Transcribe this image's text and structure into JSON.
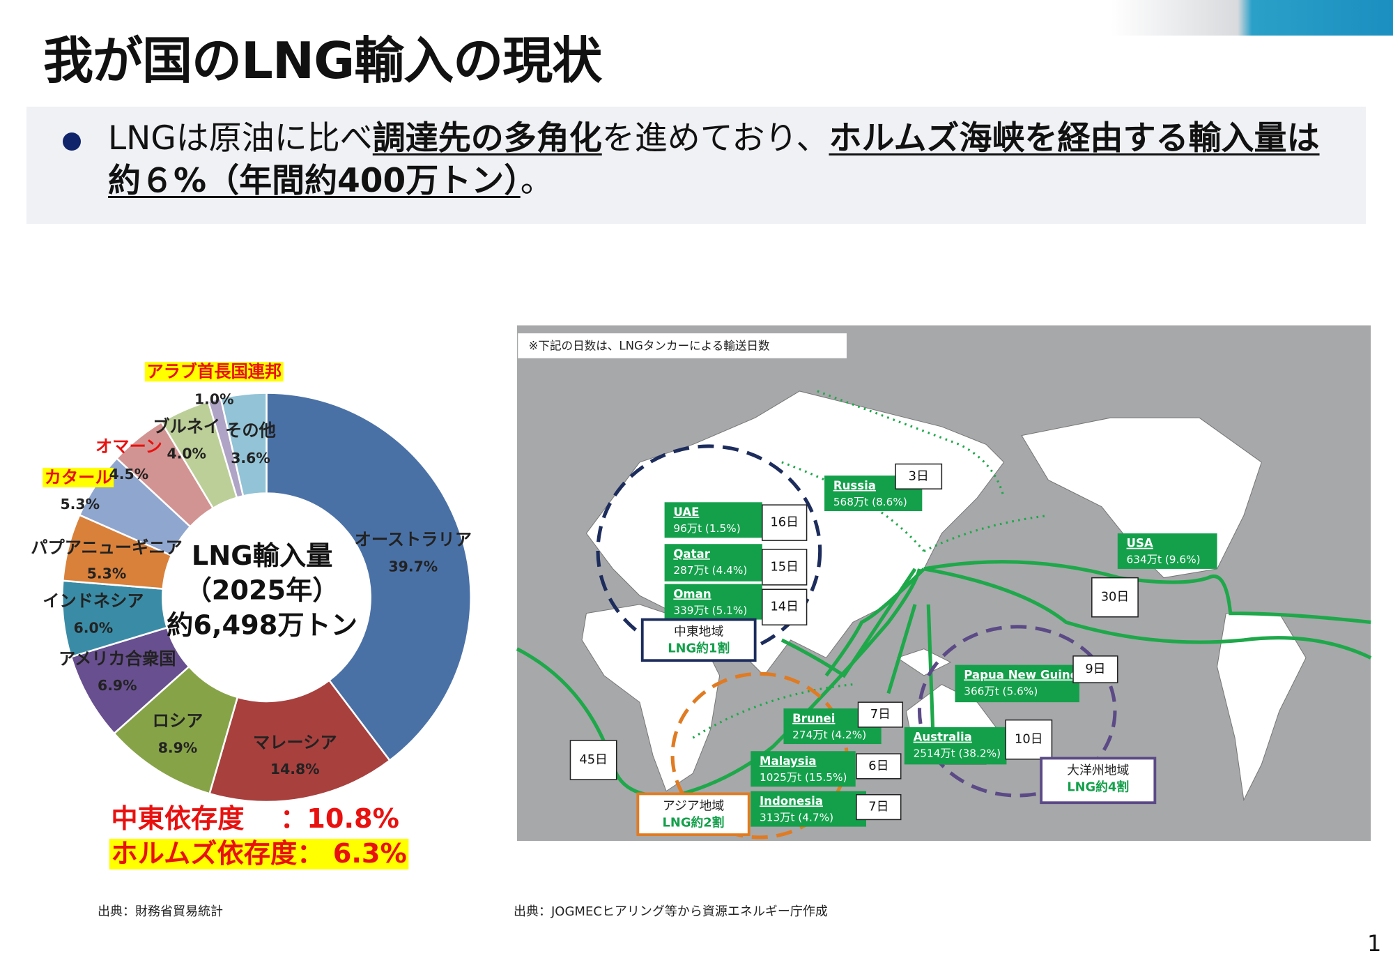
{
  "header": {
    "title": "我が国のLNG輸入の現状"
  },
  "summary": {
    "segments": [
      {
        "text": "LNGは原油に比べ",
        "emphasis": false
      },
      {
        "text": "調達先の多角化",
        "emphasis": true
      },
      {
        "text": "を進めており、",
        "emphasis": false
      },
      {
        "text": "ホルムズ海峡を経由する輸入量は約６%（年間約400万トン）",
        "emphasis": true
      },
      {
        "text": "。",
        "emphasis": false
      }
    ]
  },
  "chart_data": {
    "type": "donut",
    "categories": [
      "オーストラリア",
      "マレーシア",
      "ロシア",
      "アメリカ合衆国",
      "インドネシア",
      "パプアニューギニア",
      "カタール",
      "オマーン",
      "ブルネイ",
      "アラブ首長国連邦",
      "その他"
    ],
    "values": [
      39.7,
      14.8,
      8.9,
      6.9,
      6.0,
      5.3,
      5.3,
      4.5,
      4.0,
      1.0,
      3.6
    ],
    "value_labels": [
      "39.7%",
      "14.8%",
      "8.9%",
      "6.9%",
      "6.0%",
      "5.3%",
      "5.3%",
      "4.5%",
      "4.0%",
      "1.0%",
      "3.6%"
    ],
    "colors": [
      "#4a71a6",
      "#a8403e",
      "#87a348",
      "#684f8f",
      "#3a8ca6",
      "#d9813a",
      "#8fa6cf",
      "#d29493",
      "#bccf98",
      "#afa3c6",
      "#92c3d6"
    ],
    "label_colors": [
      "#222",
      "#222",
      "#222",
      "#222",
      "#222",
      "#222",
      "#e8110f",
      "#e8110f",
      "#222",
      "#e8110f",
      "#222"
    ],
    "label_backgrounds": [
      null,
      null,
      null,
      null,
      null,
      null,
      "#ffff00",
      null,
      null,
      "#ffff00",
      null
    ],
    "center_text": [
      "LNG輸入量",
      "（2025年）",
      "約6,498万トン"
    ],
    "annotations": [
      "中東依存度　 ：10.8%",
      "ホルムズ依存度： 6.3%"
    ],
    "annotation_backgrounds": [
      null,
      "#ffff00"
    ]
  },
  "map": {
    "note": "※下記の日数は、LNGタンカーによる輸送日数",
    "routes": [
      {
        "name": "UAE",
        "amount": "96万t (1.5%)",
        "days": "16日"
      },
      {
        "name": "Qatar",
        "amount": "287万t (4.4%)",
        "days": "15日"
      },
      {
        "name": "Oman",
        "amount": "339万t (5.1%)",
        "days": "14日"
      },
      {
        "name": "Russia",
        "amount": "568万t (8.6%)",
        "days": "3日"
      },
      {
        "name": "USA",
        "amount": "634万t (9.6%)",
        "days": "30日"
      },
      {
        "name": "Papua New Guinea",
        "amount": "366万t (5.6%)",
        "days": "9日"
      },
      {
        "name": "Brunei",
        "amount": "274万t (4.2%)",
        "days": "7日"
      },
      {
        "name": "Australia",
        "amount": "2514万t (38.2%)",
        "days": "10日"
      },
      {
        "name": "Malaysia",
        "amount": "1025万t (15.5%)",
        "days": "6日"
      },
      {
        "name": "Indonesia",
        "amount": "313万t (4.7%)",
        "days": "7日"
      }
    ],
    "extra_days": "45日",
    "regions": [
      {
        "name": "中東地域",
        "share": "LNG約1割",
        "color": "#1c2c5c"
      },
      {
        "name": "アジア地域",
        "share": "LNG約2割",
        "color": "#e07b22"
      },
      {
        "name": "大洋州地域",
        "share": "LNG約4割",
        "color": "#5b4a86"
      }
    ]
  },
  "sources": [
    "出典：財務省貿易統計",
    "出典：JOGMECヒアリング等から資源エネルギー庁作成"
  ],
  "page_number": "1"
}
